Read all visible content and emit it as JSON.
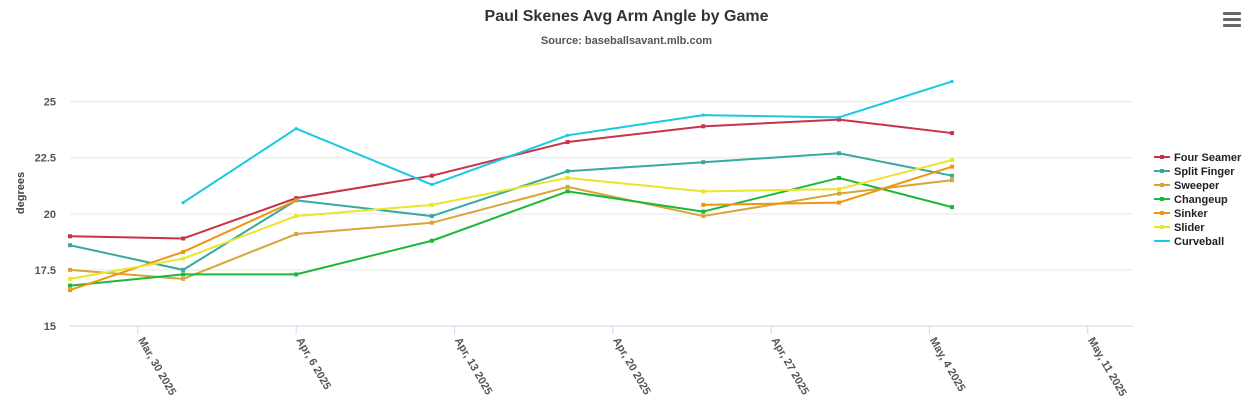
{
  "header": {
    "title": "Paul Skenes Avg Arm Angle by Game",
    "subtitle": "Source: baseballsavant.mlb.com"
  },
  "toolbar": {
    "menu_icon": "hamburger-menu-icon"
  },
  "chart_data": {
    "type": "line",
    "title": "Paul Skenes Avg Arm Angle by Game",
    "subtitle": "Source: baseballsavant.mlb.com",
    "xlabel": "",
    "ylabel": "degrees",
    "x_ticks": [
      "Mar, 30 2025",
      "Apr, 6 2025",
      "Apr, 13 2025",
      "Apr, 20 2025",
      "Apr, 27 2025",
      "May, 4 2025",
      "May, 11 2025"
    ],
    "y_ticks": [
      "15",
      "17.5",
      "20",
      "22.5",
      "25"
    ],
    "ylim": [
      15,
      26.5
    ],
    "xlim": [
      "2025-03-27",
      "2025-05-13"
    ],
    "grid": true,
    "legend_position": "right",
    "x": [
      "2025-03-27",
      "2025-04-01",
      "2025-04-06",
      "2025-04-12",
      "2025-04-18",
      "2025-04-24",
      "2025-04-30",
      "2025-05-05"
    ],
    "series": [
      {
        "name": "Four Seamer",
        "color": "#c8334a",
        "marker": true,
        "values": [
          19.0,
          18.9,
          20.7,
          21.7,
          23.2,
          23.9,
          24.2,
          23.6
        ]
      },
      {
        "name": "Split Finger",
        "color": "#36a9a1",
        "marker": true,
        "values": [
          18.6,
          17.5,
          20.6,
          19.9,
          21.9,
          22.3,
          22.7,
          21.7
        ]
      },
      {
        "name": "Sweeper",
        "color": "#d6a636",
        "marker": true,
        "values": [
          17.5,
          17.1,
          19.1,
          19.6,
          21.2,
          19.9,
          20.9,
          21.5
        ]
      },
      {
        "name": "Changeup",
        "color": "#1db83a",
        "marker": true,
        "values": [
          16.8,
          17.3,
          17.3,
          18.8,
          21.0,
          20.1,
          21.6,
          20.3
        ]
      },
      {
        "name": "Sinker",
        "color": "#f0950e",
        "marker": true,
        "values": [
          16.6,
          18.3,
          20.6,
          null,
          null,
          20.4,
          20.5,
          22.1
        ]
      },
      {
        "name": "Slider",
        "color": "#ece42b",
        "marker": true,
        "values": [
          17.1,
          18.0,
          19.9,
          20.4,
          21.6,
          21.0,
          21.1,
          22.4
        ]
      },
      {
        "name": "Curveball",
        "color": "#19c9e2",
        "marker": false,
        "values": [
          null,
          20.5,
          23.8,
          21.3,
          23.5,
          24.4,
          24.3,
          25.9
        ]
      }
    ]
  }
}
